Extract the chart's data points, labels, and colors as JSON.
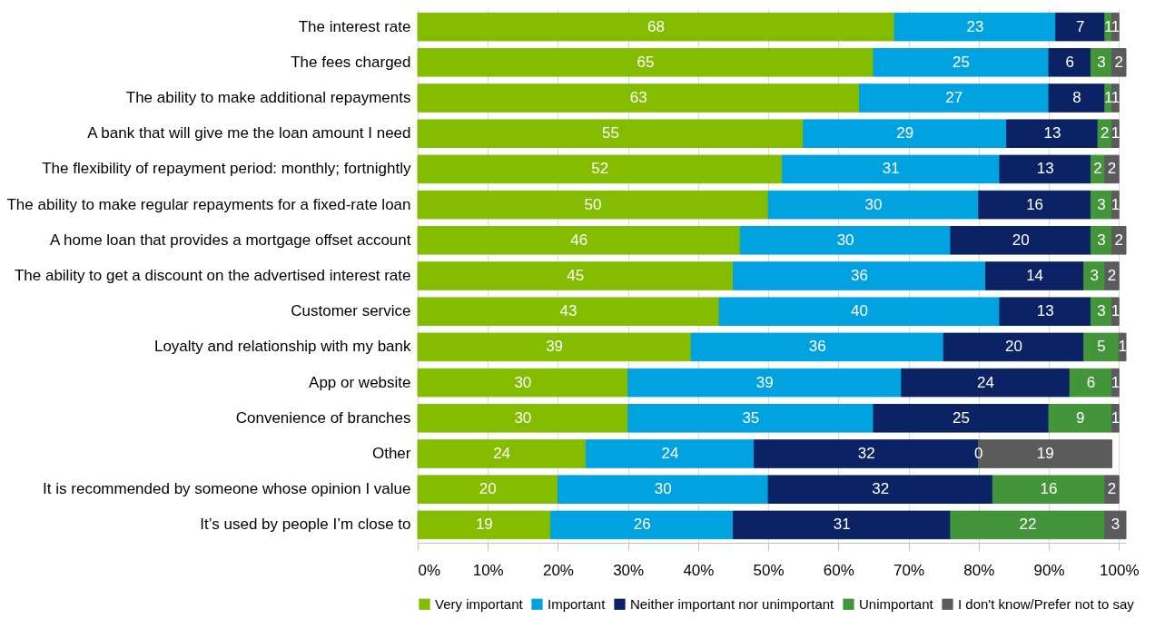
{
  "chart_data": {
    "type": "bar",
    "orientation": "horizontal",
    "stacked": true,
    "data_labels": true,
    "grid": "x",
    "legend": "bottom",
    "categories": [
      "The interest rate",
      "The fees charged",
      "The ability to make additional repayments",
      "A bank that will give me the loan amount I need",
      "The flexibility of repayment period: monthly; fortnightly",
      "The ability to make regular repayments for a fixed-rate loan",
      "A home loan that provides a mortgage offset account",
      "The ability to get a discount on the advertised interest rate",
      "Customer service",
      "Loyalty and relationship with my bank",
      "App or website",
      "Convenience of branches",
      "Other",
      "It is recommended by someone whose opinion I value",
      "It’s used by people I’m close to"
    ],
    "series": [
      {
        "name": "Very important",
        "color": "#84bd00",
        "values": [
          68,
          65,
          63,
          55,
          52,
          50,
          46,
          45,
          43,
          39,
          30,
          30,
          24,
          20,
          19
        ]
      },
      {
        "name": "Important",
        "color": "#00a3e0",
        "values": [
          23,
          25,
          27,
          29,
          31,
          30,
          30,
          36,
          40,
          36,
          39,
          35,
          24,
          30,
          26
        ]
      },
      {
        "name": "Neither important nor unimportant",
        "color": "#0b2265",
        "values": [
          7,
          6,
          8,
          13,
          13,
          16,
          20,
          14,
          13,
          20,
          24,
          25,
          32,
          32,
          31
        ]
      },
      {
        "name": "Unimportant",
        "color": "#43953a",
        "values": [
          1,
          3,
          1,
          2,
          2,
          3,
          3,
          3,
          3,
          5,
          6,
          9,
          0,
          16,
          22
        ]
      },
      {
        "name": "I don't know/Prefer not to say",
        "color": "#5b5b5b",
        "values": [
          1,
          2,
          1,
          1,
          2,
          1,
          2,
          2,
          1,
          1,
          1,
          1,
          19,
          2,
          3
        ]
      }
    ],
    "xlim": [
      0,
      101
    ],
    "xticks": [
      {
        "value": 0,
        "label": "0%"
      },
      {
        "value": 10,
        "label": "10%"
      },
      {
        "value": 20,
        "label": "20%"
      },
      {
        "value": 30,
        "label": "30%"
      },
      {
        "value": 40,
        "label": "40%"
      },
      {
        "value": 50,
        "label": "50%"
      },
      {
        "value": 60,
        "label": "60%"
      },
      {
        "value": 70,
        "label": "70%"
      },
      {
        "value": 80,
        "label": "80%"
      },
      {
        "value": 90,
        "label": "90%"
      },
      {
        "value": 100,
        "label": "100%"
      }
    ]
  }
}
